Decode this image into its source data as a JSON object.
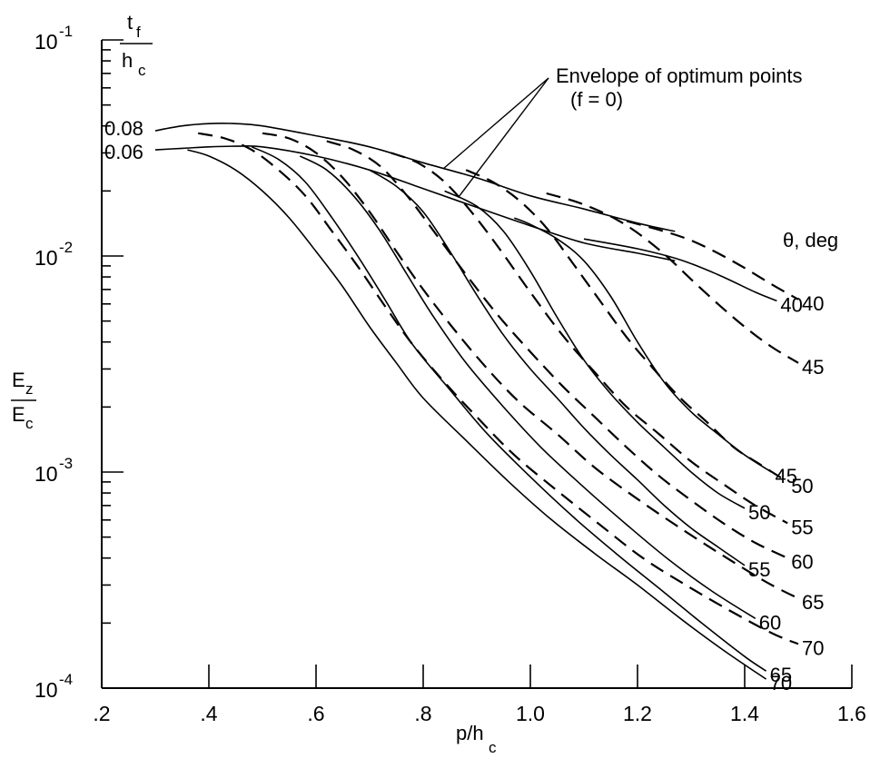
{
  "chart_data": {
    "type": "line",
    "title": "",
    "xlabel": "p/h",
    "xlabel_sub": "c",
    "ylabel_num": "E",
    "ylabel_num_sub": "z",
    "ylabel_den": "E",
    "ylabel_den_sub": "c",
    "yscale": "log",
    "xlim": [
      0.2,
      1.6
    ],
    "ylim": [
      0.0001,
      0.1
    ],
    "x_ticks": [
      0.2,
      0.4,
      0.6,
      0.8,
      1.0,
      1.2,
      1.4,
      1.6
    ],
    "x_tick_labels": [
      ".2",
      ".4",
      ".6",
      ".8",
      "1.0",
      "1.2",
      "1.4",
      "1.6"
    ],
    "y_ticks": [
      {
        "value": 0.1,
        "base": "10",
        "exp": "-1"
      },
      {
        "value": 0.01,
        "base": "10",
        "exp": "-2"
      },
      {
        "value": 0.001,
        "base": "10",
        "exp": "-3"
      },
      {
        "value": 0.0001,
        "base": "10",
        "exp": "-4"
      }
    ],
    "legend_title": "θ, deg",
    "param_label": {
      "num": "t",
      "num_sub": "f",
      "den": "h",
      "den_sub": "c"
    },
    "param_values": [
      "0.08",
      "0.06"
    ],
    "annotation": {
      "line1": "Envelope of optimum points",
      "line2": "(f = 0)"
    },
    "series": [
      {
        "name": "40",
        "tf_hc": 0.06,
        "style": "solid",
        "x": [
          1.1,
          1.2,
          1.28,
          1.35,
          1.42,
          1.46
        ],
        "y": [
          0.012,
          0.0108,
          0.0096,
          0.0082,
          0.0068,
          0.0062
        ],
        "label": "40"
      },
      {
        "name": "45",
        "tf_hc": 0.06,
        "style": "solid",
        "x": [
          0.97,
          1.0,
          1.05,
          1.1,
          1.15,
          1.2,
          1.25,
          1.3,
          1.35,
          1.4,
          1.45
        ],
        "y": [
          0.015,
          0.014,
          0.012,
          0.0095,
          0.0065,
          0.004,
          0.0026,
          0.0019,
          0.0015,
          0.0012,
          0.001
        ],
        "label": "45"
      },
      {
        "name": "50",
        "tf_hc": 0.06,
        "style": "solid",
        "x": [
          0.84,
          0.9,
          0.95,
          1.0,
          1.05,
          1.1,
          1.15,
          1.2,
          1.25,
          1.3,
          1.35,
          1.4
        ],
        "y": [
          0.02,
          0.017,
          0.013,
          0.0085,
          0.0052,
          0.0033,
          0.0023,
          0.0017,
          0.0013,
          0.001,
          0.0008,
          0.00068
        ],
        "label": "50"
      },
      {
        "name": "55",
        "tf_hc": 0.06,
        "style": "solid",
        "x": [
          0.7,
          0.75,
          0.8,
          0.85,
          0.9,
          0.95,
          1.0,
          1.05,
          1.1,
          1.15,
          1.2,
          1.25,
          1.3,
          1.35,
          1.4
        ],
        "y": [
          0.025,
          0.021,
          0.016,
          0.0105,
          0.0066,
          0.0043,
          0.003,
          0.0022,
          0.0016,
          0.0012,
          0.00092,
          0.0007,
          0.00055,
          0.00045,
          0.00037
        ],
        "label": "55"
      },
      {
        "name": "60",
        "tf_hc": 0.06,
        "style": "solid",
        "x": [
          0.57,
          0.62,
          0.67,
          0.72,
          0.77,
          0.82,
          0.88,
          0.95,
          1.02,
          1.1,
          1.18,
          1.26,
          1.34,
          1.42
        ],
        "y": [
          0.029,
          0.025,
          0.019,
          0.013,
          0.0082,
          0.0052,
          0.0032,
          0.002,
          0.0013,
          0.00085,
          0.00057,
          0.00039,
          0.00028,
          0.00021
        ],
        "label": "60"
      },
      {
        "name": "65",
        "tf_hc": 0.06,
        "style": "solid",
        "x": [
          0.48,
          0.53,
          0.58,
          0.63,
          0.68,
          0.73,
          0.78,
          0.85,
          0.92,
          1.0,
          1.08,
          1.16,
          1.24,
          1.32,
          1.4,
          1.44
        ],
        "y": [
          0.032,
          0.028,
          0.022,
          0.015,
          0.0098,
          0.0062,
          0.0039,
          0.0024,
          0.0015,
          0.00095,
          0.00062,
          0.00042,
          0.00029,
          0.0002,
          0.00014,
          0.00012
        ],
        "label": "65"
      },
      {
        "name": "70",
        "tf_hc": 0.06,
        "style": "solid",
        "x": [
          0.36,
          0.4,
          0.45,
          0.5,
          0.55,
          0.6,
          0.65,
          0.7,
          0.75,
          0.8,
          0.88,
          0.96,
          1.04,
          1.12,
          1.2,
          1.28,
          1.36,
          1.44
        ],
        "y": [
          0.031,
          0.029,
          0.025,
          0.02,
          0.015,
          0.0105,
          0.0072,
          0.0047,
          0.0032,
          0.0022,
          0.0014,
          0.0009,
          0.0006,
          0.00042,
          0.0003,
          0.00021,
          0.00015,
          0.00011
        ],
        "label": "70"
      },
      {
        "name": "40",
        "tf_hc": 0.08,
        "style": "dashed",
        "x": [
          1.18,
          1.25,
          1.3,
          1.35,
          1.4,
          1.45,
          1.5
        ],
        "y": [
          0.0145,
          0.013,
          0.0118,
          0.0103,
          0.0088,
          0.0074,
          0.0063
        ],
        "label": "40"
      },
      {
        "name": "45",
        "tf_hc": 0.08,
        "style": "dashed",
        "x": [
          1.03,
          1.08,
          1.12,
          1.16,
          1.2,
          1.25,
          1.3,
          1.35,
          1.4,
          1.45,
          1.5
        ],
        "y": [
          0.0195,
          0.018,
          0.0165,
          0.0148,
          0.0128,
          0.0102,
          0.0078,
          0.006,
          0.0047,
          0.0038,
          0.0032
        ],
        "label": "45"
      },
      {
        "name": "50",
        "tf_hc": 0.08,
        "style": "dashed",
        "x": [
          0.88,
          0.93,
          0.98,
          1.03,
          1.08,
          1.13,
          1.18,
          1.23,
          1.28,
          1.33,
          1.38,
          1.43,
          1.48
        ],
        "y": [
          0.025,
          0.022,
          0.018,
          0.0135,
          0.0092,
          0.0062,
          0.0042,
          0.003,
          0.0022,
          0.0017,
          0.0013,
          0.00108,
          0.0009
        ],
        "label": "50"
      },
      {
        "name": "55",
        "tf_hc": 0.08,
        "style": "dashed",
        "x": [
          0.74,
          0.79,
          0.84,
          0.89,
          0.94,
          1.0,
          1.06,
          1.12,
          1.18,
          1.24,
          1.3,
          1.36,
          1.42,
          1.48
        ],
        "y": [
          0.03,
          0.027,
          0.022,
          0.016,
          0.011,
          0.0068,
          0.0043,
          0.0029,
          0.002,
          0.0015,
          0.00112,
          0.00088,
          0.0007,
          0.00058
        ],
        "label": "55"
      },
      {
        "name": "60",
        "tf_hc": 0.08,
        "style": "dashed",
        "x": [
          0.62,
          0.67,
          0.72,
          0.77,
          0.82,
          0.88,
          0.94,
          1.0,
          1.06,
          1.12,
          1.18,
          1.24,
          1.3,
          1.36,
          1.42,
          1.48
        ],
        "y": [
          0.034,
          0.031,
          0.026,
          0.019,
          0.013,
          0.0082,
          0.0053,
          0.0036,
          0.0025,
          0.0018,
          0.0013,
          0.00096,
          0.00074,
          0.00058,
          0.00047,
          0.0004
        ],
        "label": "60"
      },
      {
        "name": "65",
        "tf_hc": 0.08,
        "style": "dashed",
        "x": [
          0.5,
          0.55,
          0.6,
          0.65,
          0.7,
          0.75,
          0.8,
          0.86,
          0.92,
          0.98,
          1.05,
          1.12,
          1.2,
          1.28,
          1.36,
          1.44,
          1.5
        ],
        "y": [
          0.037,
          0.035,
          0.03,
          0.023,
          0.016,
          0.0105,
          0.007,
          0.0045,
          0.003,
          0.0021,
          0.0015,
          0.00105,
          0.00075,
          0.00055,
          0.00041,
          0.00031,
          0.00026
        ],
        "label": "65"
      },
      {
        "name": "70",
        "tf_hc": 0.08,
        "style": "dashed",
        "x": [
          0.38,
          0.43,
          0.48,
          0.53,
          0.58,
          0.63,
          0.68,
          0.73,
          0.78,
          0.84,
          0.9,
          0.97,
          1.05,
          1.13,
          1.21,
          1.29,
          1.37,
          1.45,
          1.5
        ],
        "y": [
          0.037,
          0.035,
          0.031,
          0.025,
          0.019,
          0.013,
          0.0088,
          0.0058,
          0.0039,
          0.0026,
          0.0018,
          0.0012,
          0.00082,
          0.00057,
          0.0004,
          0.0003,
          0.00023,
          0.00018,
          0.00016
        ],
        "label": "70"
      }
    ],
    "envelopes": [
      {
        "tf_hc": "0.08",
        "x": [
          0.3,
          0.35,
          0.4,
          0.45,
          0.5,
          0.6,
          0.7,
          0.8,
          0.9,
          1.0,
          1.1,
          1.2,
          1.27
        ],
        "y": [
          0.038,
          0.04,
          0.041,
          0.041,
          0.04,
          0.036,
          0.032,
          0.027,
          0.023,
          0.019,
          0.0165,
          0.0142,
          0.013
        ]
      },
      {
        "tf_hc": "0.06",
        "x": [
          0.3,
          0.35,
          0.4,
          0.45,
          0.5,
          0.6,
          0.7,
          0.8,
          0.9,
          1.0,
          1.1,
          1.2,
          1.27
        ],
        "y": [
          0.031,
          0.0315,
          0.032,
          0.0322,
          0.032,
          0.029,
          0.025,
          0.0205,
          0.0168,
          0.0138,
          0.0115,
          0.0103,
          0.0095
        ]
      }
    ]
  }
}
